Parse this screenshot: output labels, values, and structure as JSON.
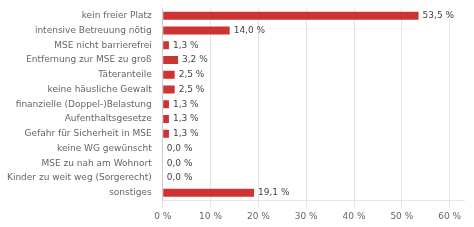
{
  "chart_data": {
    "type": "bar",
    "orientation": "horizontal",
    "categories": [
      "sonstiges",
      "Kinder zu weit weg (Sorgerecht)",
      "MSE zu nah am Wohnort",
      "keine WG gewünscht",
      "Gefahr für Sicherheit in MSE",
      "Aufenthaltsgesetze",
      "finanzielle (Doppel-)Belastung",
      "keine häusliche Gewalt",
      "Täteranteile",
      "Entfernung zur MSE zu groß",
      "MSE nicht barrierefrei",
      "intensive Betreuung nötig",
      "kein freier Platz"
    ],
    "values": [
      19.1,
      0.0,
      0.0,
      0.0,
      1.3,
      1.3,
      1.3,
      2.5,
      2.5,
      3.2,
      1.3,
      14.0,
      53.5
    ],
    "value_labels": [
      "19,1 %",
      "0,0 %",
      "0,0 %",
      "0,0 %",
      "1,3 %",
      "1,3 %",
      "1,3 %",
      "2,5 %",
      "2,5 %",
      "3,2 %",
      "1,3 %",
      "14,0 %",
      "53,5 %"
    ],
    "color": "#cc3333",
    "data_labels": true,
    "xlim": [
      0,
      63
    ],
    "xticks": [
      {
        "value": 0,
        "label": "0 %"
      },
      {
        "value": 10,
        "label": "10 %"
      },
      {
        "value": 20,
        "label": "20 %"
      },
      {
        "value": 30,
        "label": "30 %"
      },
      {
        "value": 40,
        "label": "40 %"
      },
      {
        "value": 50,
        "label": "50 %"
      },
      {
        "value": 60,
        "label": "60 %"
      }
    ],
    "grid": true
  }
}
